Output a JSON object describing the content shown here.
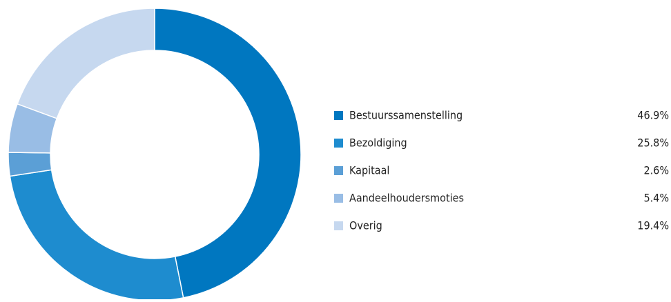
{
  "chart_data": {
    "type": "donut",
    "categories": [
      "Bestuurssamenstelling",
      "Bezoldiging",
      "Kapitaal",
      "Aandeelhoudersmoties",
      "Overig"
    ],
    "values": [
      46.9,
      25.8,
      2.6,
      5.4,
      19.4
    ],
    "value_labels": [
      "46.9%",
      "25.8%",
      "2.6%",
      "5.4%",
      "19.4%"
    ],
    "colors": [
      "#0077c0",
      "#1e8ccf",
      "#5b9fd6",
      "#99bde5",
      "#c6d8ef"
    ]
  }
}
